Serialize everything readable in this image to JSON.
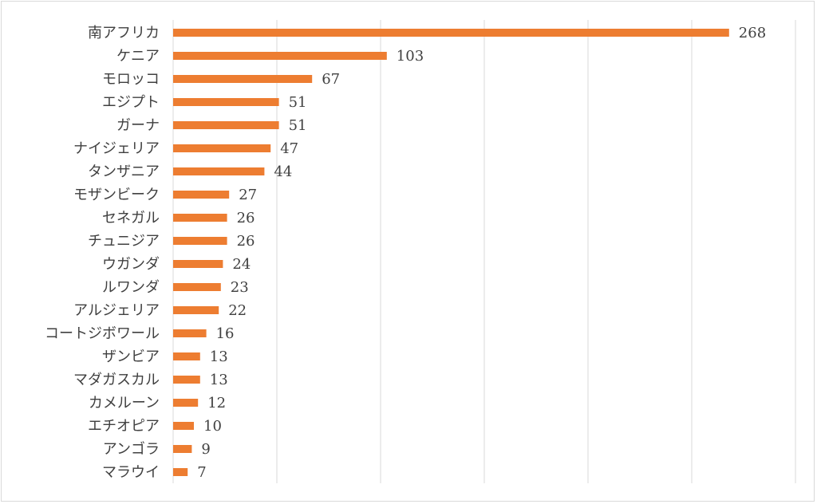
{
  "chart_data": {
    "type": "bar",
    "orientation": "horizontal",
    "categories": [
      "南アフリカ",
      "ケニア",
      "モロッコ",
      "エジプト",
      "ガーナ",
      "ナイジェリア",
      "タンザニア",
      "モザンビーク",
      "セネガル",
      "チュニジア",
      "ウガンダ",
      "ルワンダ",
      "アルジェリア",
      "コートジボワール",
      "ザンビア",
      "マダガスカル",
      "カメルーン",
      "エチオピア",
      "アンゴラ",
      "マラウイ"
    ],
    "values": [
      268,
      103,
      67,
      51,
      51,
      47,
      44,
      27,
      26,
      26,
      24,
      23,
      22,
      16,
      13,
      13,
      12,
      10,
      9,
      7
    ],
    "value_labels": [
      "268",
      "103",
      "67",
      "51",
      "51",
      "47",
      "44",
      "27",
      "26",
      "26",
      "24",
      "23",
      "22",
      "16",
      "13",
      "13",
      "12",
      "10",
      "9",
      "7"
    ],
    "xlim": [
      0,
      300
    ],
    "grid": "vertical",
    "bar_color": "#ed7d31",
    "grid_color": "#d9d9d9",
    "title": "",
    "xlabel": "",
    "ylabel": ""
  }
}
